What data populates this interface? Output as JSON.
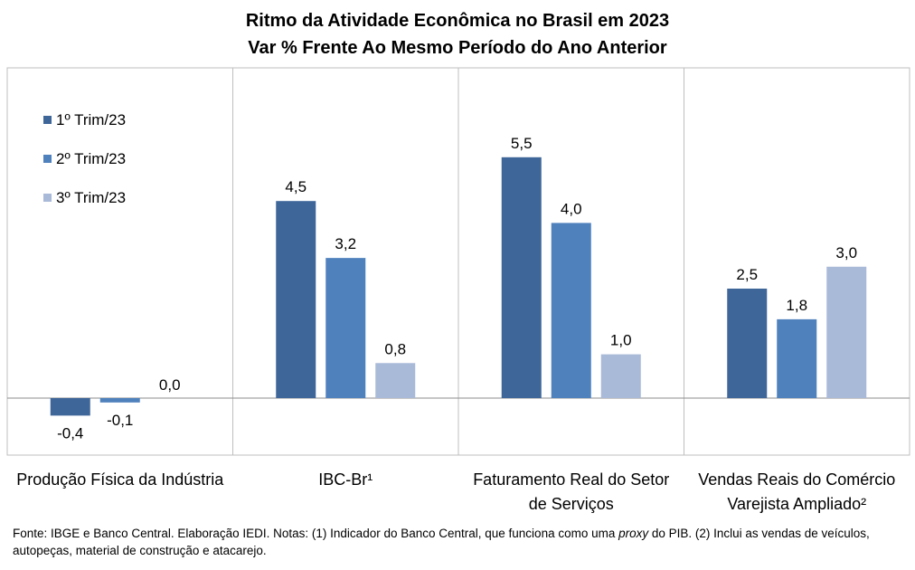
{
  "chart_data": {
    "type": "bar",
    "title": "Ritmo da Atividade Econômica no Brasil em 2023",
    "subtitle": "Var % Frente Ao Mesmo Período do Ano Anterior",
    "categories": [
      [
        "Produção Física da Indústria"
      ],
      [
        "IBC-Br¹"
      ],
      [
        "Faturamento Real do Setor",
        "de Serviços"
      ],
      [
        "Vendas Reais do Comércio",
        "Varejista Ampliado²"
      ]
    ],
    "series": [
      {
        "name": "1º Trim/23",
        "color": "#3E6699",
        "values": [
          -0.4,
          4.5,
          5.5,
          2.5
        ],
        "labels": [
          "-0,4",
          "4,5",
          "5,5",
          "2,5"
        ]
      },
      {
        "name": "2º Trim/23",
        "color": "#4F81BD",
        "values": [
          -0.1,
          3.2,
          4.0,
          1.8
        ],
        "labels": [
          "-0,1",
          "3,2",
          "4,0",
          "1,8"
        ]
      },
      {
        "name": "3º Trim/23",
        "color": "#A9BAD8",
        "values": [
          0.0,
          0.8,
          1.0,
          3.0
        ],
        "labels": [
          "0,0",
          "0,8",
          "1,0",
          "3,0"
        ]
      }
    ],
    "ylim": [
      -0.9,
      6.2
    ],
    "grid": false,
    "legend": "top-left"
  },
  "footnote": {
    "part1": "Fonte: IBGE e Banco Central. Elaboração IEDI. Notas: (1) Indicador do Banco Central, que funciona como uma ",
    "italic": "proxy",
    "part2": " do PIB. (2) Inclui as vendas de veículos, autopeças, material de construção e atacarejo."
  }
}
